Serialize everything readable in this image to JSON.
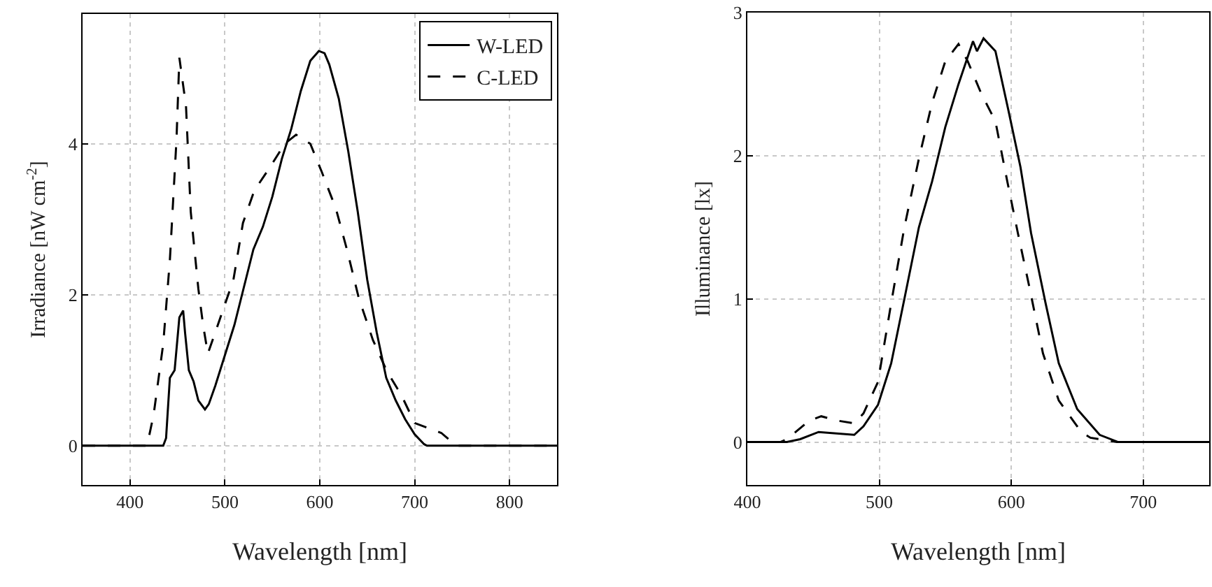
{
  "chart_data": [
    {
      "type": "line",
      "xlabel": "Wavelength [nm]",
      "ylabel": "Irradiance [nW cm$^{-2}$]",
      "xlim": [
        350,
        850
      ],
      "xticks": [
        400,
        500,
        600,
        700,
        800
      ],
      "ylim": [
        -0.52,
        5.72
      ],
      "yticks": [
        0,
        2,
        4
      ],
      "grid": true,
      "legend": "top right",
      "series": [
        {
          "name": "W-LED",
          "color": "#000000",
          "line_style": "solid",
          "x": [
            350,
            435,
            438,
            442,
            447,
            452,
            456,
            458,
            462,
            467,
            472,
            479,
            483,
            490,
            500,
            510,
            520,
            530,
            540,
            550,
            560,
            570,
            580,
            590,
            599,
            605,
            610,
            620,
            630,
            640,
            650,
            660,
            670,
            680,
            690,
            700,
            710,
            713,
            850
          ],
          "values": [
            0,
            0,
            0.1,
            0.9,
            1.0,
            1.7,
            1.79,
            1.5,
            1.0,
            0.85,
            0.6,
            0.48,
            0.55,
            0.8,
            1.2,
            1.6,
            2.1,
            2.6,
            2.9,
            3.3,
            3.8,
            4.2,
            4.7,
            5.1,
            5.23,
            5.2,
            5.05,
            4.6,
            3.9,
            3.1,
            2.2,
            1.5,
            0.9,
            0.6,
            0.35,
            0.15,
            0.02,
            0,
            0
          ]
        },
        {
          "name": "C-LED",
          "color": "#000000",
          "line_style": "dashed",
          "x": [
            350,
            418,
            425,
            435,
            442,
            449,
            452,
            459,
            464,
            472,
            477,
            482,
            489,
            509,
            519,
            531,
            548,
            563,
            575,
            590,
            602,
            617,
            629,
            641,
            656,
            671,
            686,
            700,
            715,
            728,
            742,
            745,
            850
          ],
          "values": [
            0,
            0,
            0.42,
            1.35,
            2.46,
            4.06,
            5.14,
            4.5,
            3.1,
            2.08,
            1.6,
            1.22,
            1.47,
            2.2,
            2.95,
            3.38,
            3.7,
            4.0,
            4.12,
            4.0,
            3.63,
            3.14,
            2.58,
            1.96,
            1.4,
            0.98,
            0.67,
            0.3,
            0.23,
            0.17,
            0.02,
            0,
            0
          ]
        }
      ]
    },
    {
      "type": "line",
      "xlabel": "Wavelength [nm]",
      "ylabel": "Illuminance [lx]",
      "xlim": [
        400,
        750
      ],
      "xticks": [
        400,
        500,
        600,
        700
      ],
      "ylim": [
        -0.3,
        3
      ],
      "yticks": [
        0,
        1,
        2,
        3
      ],
      "grid": true,
      "series": [
        {
          "color": "#000000",
          "line_style": "solid",
          "x": [
            400,
            430,
            440,
            454,
            481,
            488,
            499,
            509,
            519,
            530,
            540,
            550,
            560,
            571,
            574,
            579,
            588,
            598,
            607,
            615,
            626,
            636,
            650,
            667,
            681,
            750
          ],
          "values": [
            0,
            0,
            0.02,
            0.07,
            0.05,
            0.11,
            0.26,
            0.55,
            1.0,
            1.5,
            1.82,
            2.2,
            2.5,
            2.8,
            2.73,
            2.82,
            2.73,
            2.31,
            1.92,
            1.46,
            0.97,
            0.55,
            0.23,
            0.05,
            0,
            0
          ]
        },
        {
          "color": "#000000",
          "line_style": "dashed",
          "x": [
            400,
            425,
            430,
            447,
            456,
            468,
            481,
            488,
            499,
            509,
            519,
            530,
            540,
            550,
            560,
            567,
            577,
            588,
            597,
            605,
            614,
            624,
            636,
            653,
            660,
            680,
            750
          ],
          "values": [
            0,
            0,
            0.02,
            0.15,
            0.18,
            0.15,
            0.13,
            0.2,
            0.42,
            0.97,
            1.5,
            1.98,
            2.37,
            2.66,
            2.78,
            2.66,
            2.44,
            2.24,
            1.82,
            1.46,
            1.07,
            0.62,
            0.29,
            0.07,
            0.03,
            0,
            0
          ]
        }
      ]
    }
  ]
}
